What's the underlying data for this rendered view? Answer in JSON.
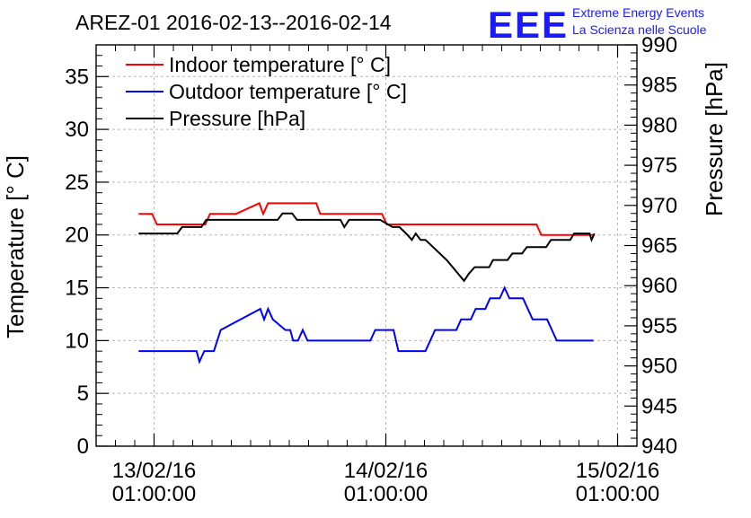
{
  "chart_data": {
    "type": "line",
    "title": "AREZ-01 2016-02-13--2016-02-14",
    "ylabel_left": "Temperature [° C]",
    "ylabel_right": "Pressure [hPa]",
    "xlabel": "",
    "ylim_left": [
      0,
      38
    ],
    "ylim_right": [
      940,
      990
    ],
    "x_ticks": [
      {
        "hours": 0,
        "date": "13/02/16",
        "time": "01:00:00"
      },
      {
        "hours": 24,
        "date": "14/02/16",
        "time": "01:00:00"
      },
      {
        "hours": 48,
        "date": "15/02/16",
        "time": "01:00:00"
      }
    ],
    "xlim_hours": [
      -6,
      50
    ],
    "y_ticks_left": [
      0,
      5,
      10,
      15,
      20,
      25,
      30,
      35
    ],
    "y_ticks_right": [
      940,
      945,
      950,
      955,
      960,
      965,
      970,
      975,
      980,
      985,
      990
    ],
    "grid": true,
    "legend_position": "top-left",
    "series": [
      {
        "name": "Indoor temperature [° C]",
        "axis": "left",
        "color": "#ff0000",
        "points": [
          [
            -1.6,
            22
          ],
          [
            -0.2,
            22
          ],
          [
            0.3,
            21
          ],
          [
            5.3,
            21
          ],
          [
            5.8,
            22
          ],
          [
            8.5,
            22
          ],
          [
            10.9,
            23
          ],
          [
            11.3,
            22
          ],
          [
            11.8,
            23
          ],
          [
            16.8,
            23
          ],
          [
            17.2,
            22
          ],
          [
            23.6,
            22
          ],
          [
            24.1,
            21
          ],
          [
            39.6,
            21
          ],
          [
            40.1,
            20
          ],
          [
            45.5,
            20
          ]
        ]
      },
      {
        "name": "Outdoor temperature [° C]",
        "axis": "left",
        "color": "#0000ff",
        "points": [
          [
            -1.6,
            9
          ],
          [
            4.4,
            9
          ],
          [
            4.7,
            8
          ],
          [
            5.2,
            9
          ],
          [
            6.2,
            9
          ],
          [
            6.9,
            11
          ],
          [
            11,
            13
          ],
          [
            11.4,
            12
          ],
          [
            11.8,
            13
          ],
          [
            12.3,
            12
          ],
          [
            13.6,
            11
          ],
          [
            14.1,
            11
          ],
          [
            14.4,
            10
          ],
          [
            14.9,
            10
          ],
          [
            15.4,
            11
          ],
          [
            15.9,
            10
          ],
          [
            22.4,
            10
          ],
          [
            22.9,
            11
          ],
          [
            24.8,
            11
          ],
          [
            25.3,
            9
          ],
          [
            28.1,
            9
          ],
          [
            29.1,
            11
          ],
          [
            31.3,
            11
          ],
          [
            31.8,
            12
          ],
          [
            32.8,
            12
          ],
          [
            33.3,
            13
          ],
          [
            34.3,
            13
          ],
          [
            34.8,
            14
          ],
          [
            35.8,
            14
          ],
          [
            36.3,
            15
          ],
          [
            36.8,
            14
          ],
          [
            38.2,
            14
          ],
          [
            39.2,
            12
          ],
          [
            40.7,
            12
          ],
          [
            41.7,
            10
          ],
          [
            42.2,
            10
          ],
          [
            43.2,
            10
          ],
          [
            43.7,
            10
          ],
          [
            44.2,
            10
          ],
          [
            45.5,
            10
          ]
        ]
      },
      {
        "name": "Pressure [hPa]",
        "axis": "right",
        "color": "#000000",
        "points": [
          [
            -1.6,
            966.5
          ],
          [
            2.4,
            966.5
          ],
          [
            2.9,
            967.3
          ],
          [
            4.9,
            967.3
          ],
          [
            5.4,
            968.2
          ],
          [
            12.8,
            968.2
          ],
          [
            13.3,
            969
          ],
          [
            14.3,
            969
          ],
          [
            14.8,
            968.2
          ],
          [
            19.3,
            968.2
          ],
          [
            19.7,
            967.3
          ],
          [
            20.2,
            968.2
          ],
          [
            23.4,
            968.2
          ],
          [
            24.7,
            967.3
          ],
          [
            25.4,
            967.3
          ],
          [
            26.1,
            966.5
          ],
          [
            26.7,
            965.7
          ],
          [
            27.1,
            966.5
          ],
          [
            27.6,
            965.7
          ],
          [
            28.1,
            965.7
          ],
          [
            30.3,
            963.2
          ],
          [
            32.1,
            960.6
          ],
          [
            32.6,
            961.5
          ],
          [
            33.2,
            962.3
          ],
          [
            34.7,
            962.3
          ],
          [
            35.1,
            963.2
          ],
          [
            36.6,
            963.2
          ],
          [
            37.1,
            964
          ],
          [
            38.1,
            964
          ],
          [
            38.6,
            964.8
          ],
          [
            40.6,
            964.8
          ],
          [
            41.1,
            965.7
          ],
          [
            43.1,
            965.7
          ],
          [
            43.5,
            966.5
          ],
          [
            45.1,
            966.5
          ],
          [
            45.3,
            965.7
          ],
          [
            45.6,
            966.5
          ]
        ]
      }
    ]
  },
  "logo": {
    "mark": "EEE",
    "line1": "Extreme Energy Events",
    "line2": "La Scienza nelle Scuole",
    "color": "#1a1aff"
  }
}
